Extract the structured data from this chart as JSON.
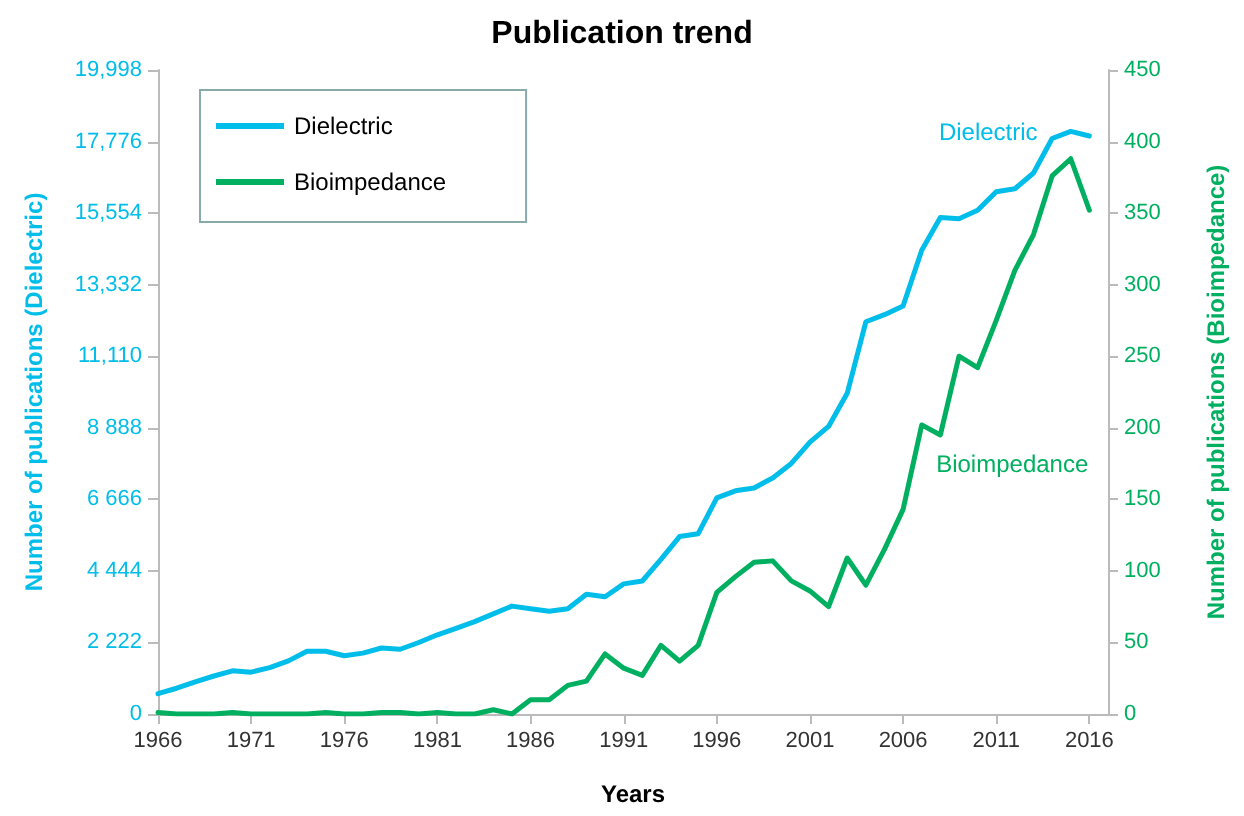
{
  "chart_data": {
    "type": "line",
    "title": "Publication trend",
    "xlabel": "Years",
    "ylabel": "Number of publications (Dielectric)",
    "y2label": "Number of publications (Bioimpedance)",
    "x": [
      1966,
      1967,
      1968,
      1969,
      1970,
      1971,
      1972,
      1973,
      1974,
      1975,
      1976,
      1977,
      1978,
      1979,
      1980,
      1981,
      1982,
      1983,
      1984,
      1985,
      1986,
      1987,
      1988,
      1989,
      1990,
      1991,
      1992,
      1993,
      1994,
      1995,
      1996,
      1997,
      1998,
      1999,
      2000,
      2001,
      2002,
      2003,
      2004,
      2005,
      2006,
      2007,
      2008,
      2009,
      2010,
      2011,
      2012,
      2013,
      2014,
      2015,
      2016
    ],
    "series": [
      {
        "name": "Dielectric",
        "color": "#00bde9",
        "values": [
          630,
          800,
          1000,
          1180,
          1340,
          1300,
          1440,
          1650,
          1950,
          1950,
          1810,
          1890,
          2050,
          2010,
          2220,
          2460,
          2660,
          2870,
          3110,
          3350,
          3270,
          3190,
          3270,
          3720,
          3640,
          4040,
          4130,
          4800,
          5510,
          5600,
          6710,
          6930,
          7020,
          7330,
          7780,
          8440,
          8930,
          9960,
          12180,
          12400,
          12670,
          14400,
          15420,
          15380,
          15640,
          16220,
          16310,
          16800,
          17870,
          18090,
          17950
        ]
      },
      {
        "name": "Bioimpedance",
        "color": "#00b060",
        "axis": "y2",
        "values": [
          1,
          0,
          0,
          0,
          1,
          0,
          0,
          0,
          0,
          1,
          0,
          0,
          1,
          1,
          0,
          1,
          0,
          0,
          3,
          0,
          10,
          10,
          20,
          23,
          42,
          32,
          27,
          48,
          37,
          48,
          85,
          96,
          106,
          107,
          93,
          86,
          75,
          109,
          90,
          115,
          143,
          202,
          195,
          250,
          242,
          275,
          310,
          335,
          376,
          388,
          352
        ]
      }
    ],
    "xlim": [
      1966,
      2017
    ],
    "xticks": [
      1966,
      1971,
      1976,
      1981,
      1986,
      1991,
      1996,
      2001,
      2006,
      2011,
      2016
    ],
    "ylim": [
      0,
      19998
    ],
    "yticks": [
      0,
      {
        "value": 2222,
        "label": "2 222"
      },
      {
        "value": 4444,
        "label": "4 444"
      },
      {
        "value": 6666,
        "label": "6 666"
      },
      {
        "value": 8888,
        "label": "8 888"
      },
      {
        "value": 11110,
        "label": "11,110"
      },
      {
        "value": 13332,
        "label": "13,332"
      },
      {
        "value": 15554,
        "label": "15,554"
      },
      {
        "value": 17776,
        "label": "17,776"
      },
      {
        "value": 19998,
        "label": "19,998"
      }
    ],
    "y2lim": [
      0,
      450
    ],
    "y2ticks": [
      0,
      50,
      100,
      150,
      200,
      250,
      300,
      350,
      400,
      450
    ],
    "annotations": [
      "Dielectric",
      "Bioimpedance"
    ],
    "legend": "top left",
    "grid": false,
    "marker": "none",
    "line_style": "solid"
  }
}
